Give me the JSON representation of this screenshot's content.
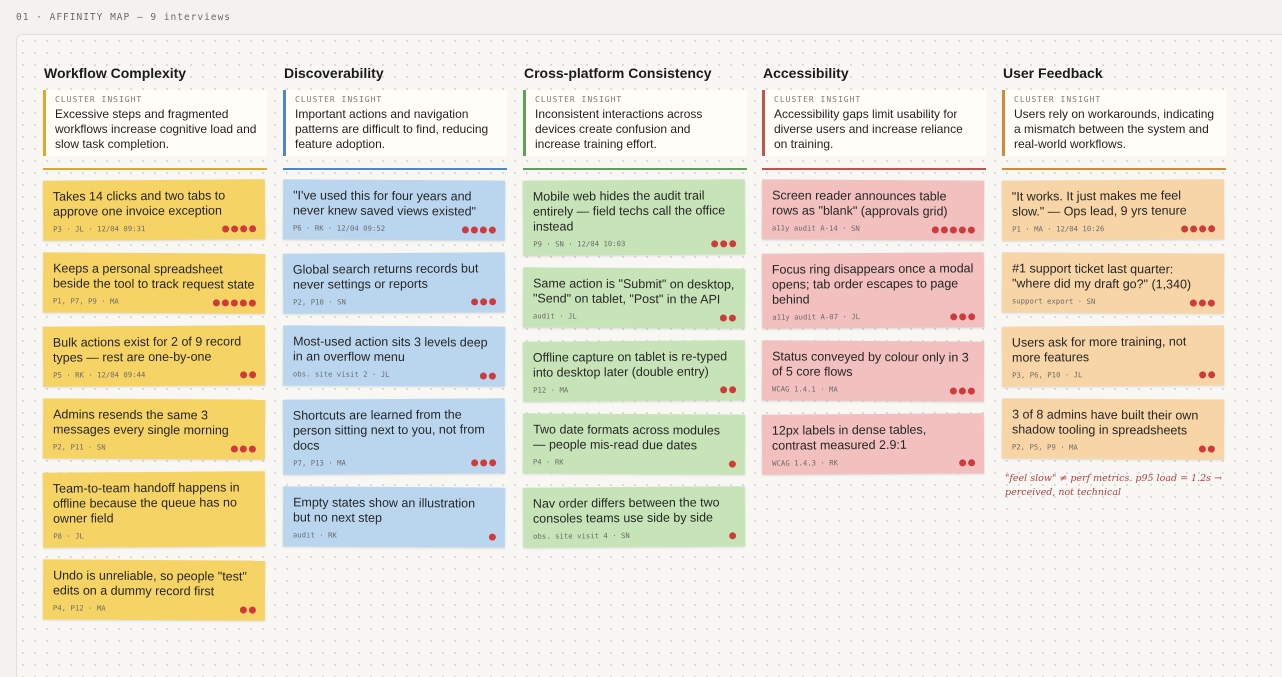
{
  "header": {
    "title": "01 · AFFINITY MAP — 9 interviews"
  },
  "columns": [
    {
      "title": "Workflow Complexity",
      "insight_label": "CLUSTER INSIGHT",
      "insight": "Excessive steps and fragmented workflows increase cognitive load and slow task completion.",
      "notes": [
        {
          "text": "Takes 14 clicks and two tabs to approve one invoice exception",
          "meta": "P3 · JL · 12/04 09:31",
          "votes": 4
        },
        {
          "text": "Keeps a personal spreadsheet beside the tool to track request state",
          "meta": "P1, P7, P9 · MA",
          "votes": 5
        },
        {
          "text": "Bulk actions exist for 2 of 9 record types — rest are one-by-one",
          "meta": "P5 · RK · 12/04 09:44",
          "votes": 2
        },
        {
          "text": "Admins resends the same 3 messages every single morning",
          "meta": "P2, P11 · SN",
          "votes": 3
        },
        {
          "text": "Team-to-team handoff happens in offline because the queue has no owner field",
          "meta": "P8 · JL",
          "votes": 0
        },
        {
          "text": "Undo is unreliable, so people \"test\" edits on a dummy record first",
          "meta": "P4, P12 · MA",
          "votes": 2
        }
      ]
    },
    {
      "title": "Discoverability",
      "insight_label": "CLUSTER INSIGHT",
      "insight": "Important actions and navigation patterns are difficult to find, reducing feature adoption.",
      "notes": [
        {
          "text": "\"I've used this for four years and never knew saved views existed\"",
          "meta": "P6 · RK · 12/04 09:52",
          "votes": 4
        },
        {
          "text": "Global search returns records but never settings or reports",
          "meta": "P2, P10 · SN",
          "votes": 3
        },
        {
          "text": "Most-used action sits 3 levels deep in an overflow menu",
          "meta": "obs. site visit 2 · JL",
          "votes": 2
        },
        {
          "text": "Shortcuts are learned from the person sitting next to you, not from docs",
          "meta": "P7, P13 · MA",
          "votes": 3
        },
        {
          "text": "Empty states show an illustration but no next step",
          "meta": "audit · RK",
          "votes": 1
        }
      ]
    },
    {
      "title": "Cross-platform Consistency",
      "insight_label": "CLUSTER INSIGHT",
      "insight": "Inconsistent interactions across devices create confusion and increase training effort.",
      "notes": [
        {
          "text": "Mobile web hides the audit trail entirely — field techs call the office instead",
          "meta": "P9 · SN · 12/04 10:03",
          "votes": 3
        },
        {
          "text": "Same action is \"Submit\" on desktop, \"Send\" on tablet, \"Post\" in the API",
          "meta": "audit · JL",
          "votes": 2
        },
        {
          "text": "Offline capture on tablet is re-typed into desktop later (double entry)",
          "meta": "P12 · MA",
          "votes": 2
        },
        {
          "text": "Two date formats across modules — people mis-read due dates",
          "meta": "P4 · RK",
          "votes": 1
        },
        {
          "text": "Nav order differs between the two consoles teams use side by side",
          "meta": "obs. site visit 4 · SN",
          "votes": 1
        }
      ]
    },
    {
      "title": "Accessibility",
      "insight_label": "CLUSTER INSIGHT",
      "insight": "Accessibility gaps limit usability for diverse users and increase reliance on training.",
      "notes": [
        {
          "text": "Screen reader announces table rows as \"blank\" (approvals grid)",
          "meta": "a11y audit A-14 · SN",
          "votes": 5
        },
        {
          "text": "Focus ring disappears once a modal opens; tab order escapes to page behind",
          "meta": "a11y audit A-07 · JL",
          "votes": 3
        },
        {
          "text": "Status conveyed by colour only in 3 of 5 core flows",
          "meta": "WCAG 1.4.1 · MA",
          "votes": 3
        },
        {
          "text": "12px labels in dense tables, contrast measured 2.9:1",
          "meta": "WCAG 1.4.3 · RK",
          "votes": 2
        }
      ]
    },
    {
      "title": "User Feedback",
      "insight_label": "CLUSTER INSIGHT",
      "insight": "Users rely on workarounds, indicating a mismatch between the system and real-world workflows.",
      "notes": [
        {
          "text": "\"It works. It just makes me feel slow.\" — Ops lead, 9 yrs tenure",
          "meta": "P1 · MA · 12/04 10:26",
          "votes": 4
        },
        {
          "text": "#1 support ticket last quarter: \"where did my draft go?\" (1,340)",
          "meta": "support export · SN",
          "votes": 3
        },
        {
          "text": "Users ask for more training, not more features",
          "meta": "P3, P6, P10 · JL",
          "votes": 2
        },
        {
          "text": "3 of 8 admins have built their own shadow tooling in spreadsheets",
          "meta": "P2, P5, P9 · MA",
          "votes": 2
        }
      ],
      "annotation": "\"feel slow\" ≠ perf metrics. p95 load = 1.2s → perceived, not technical"
    }
  ]
}
